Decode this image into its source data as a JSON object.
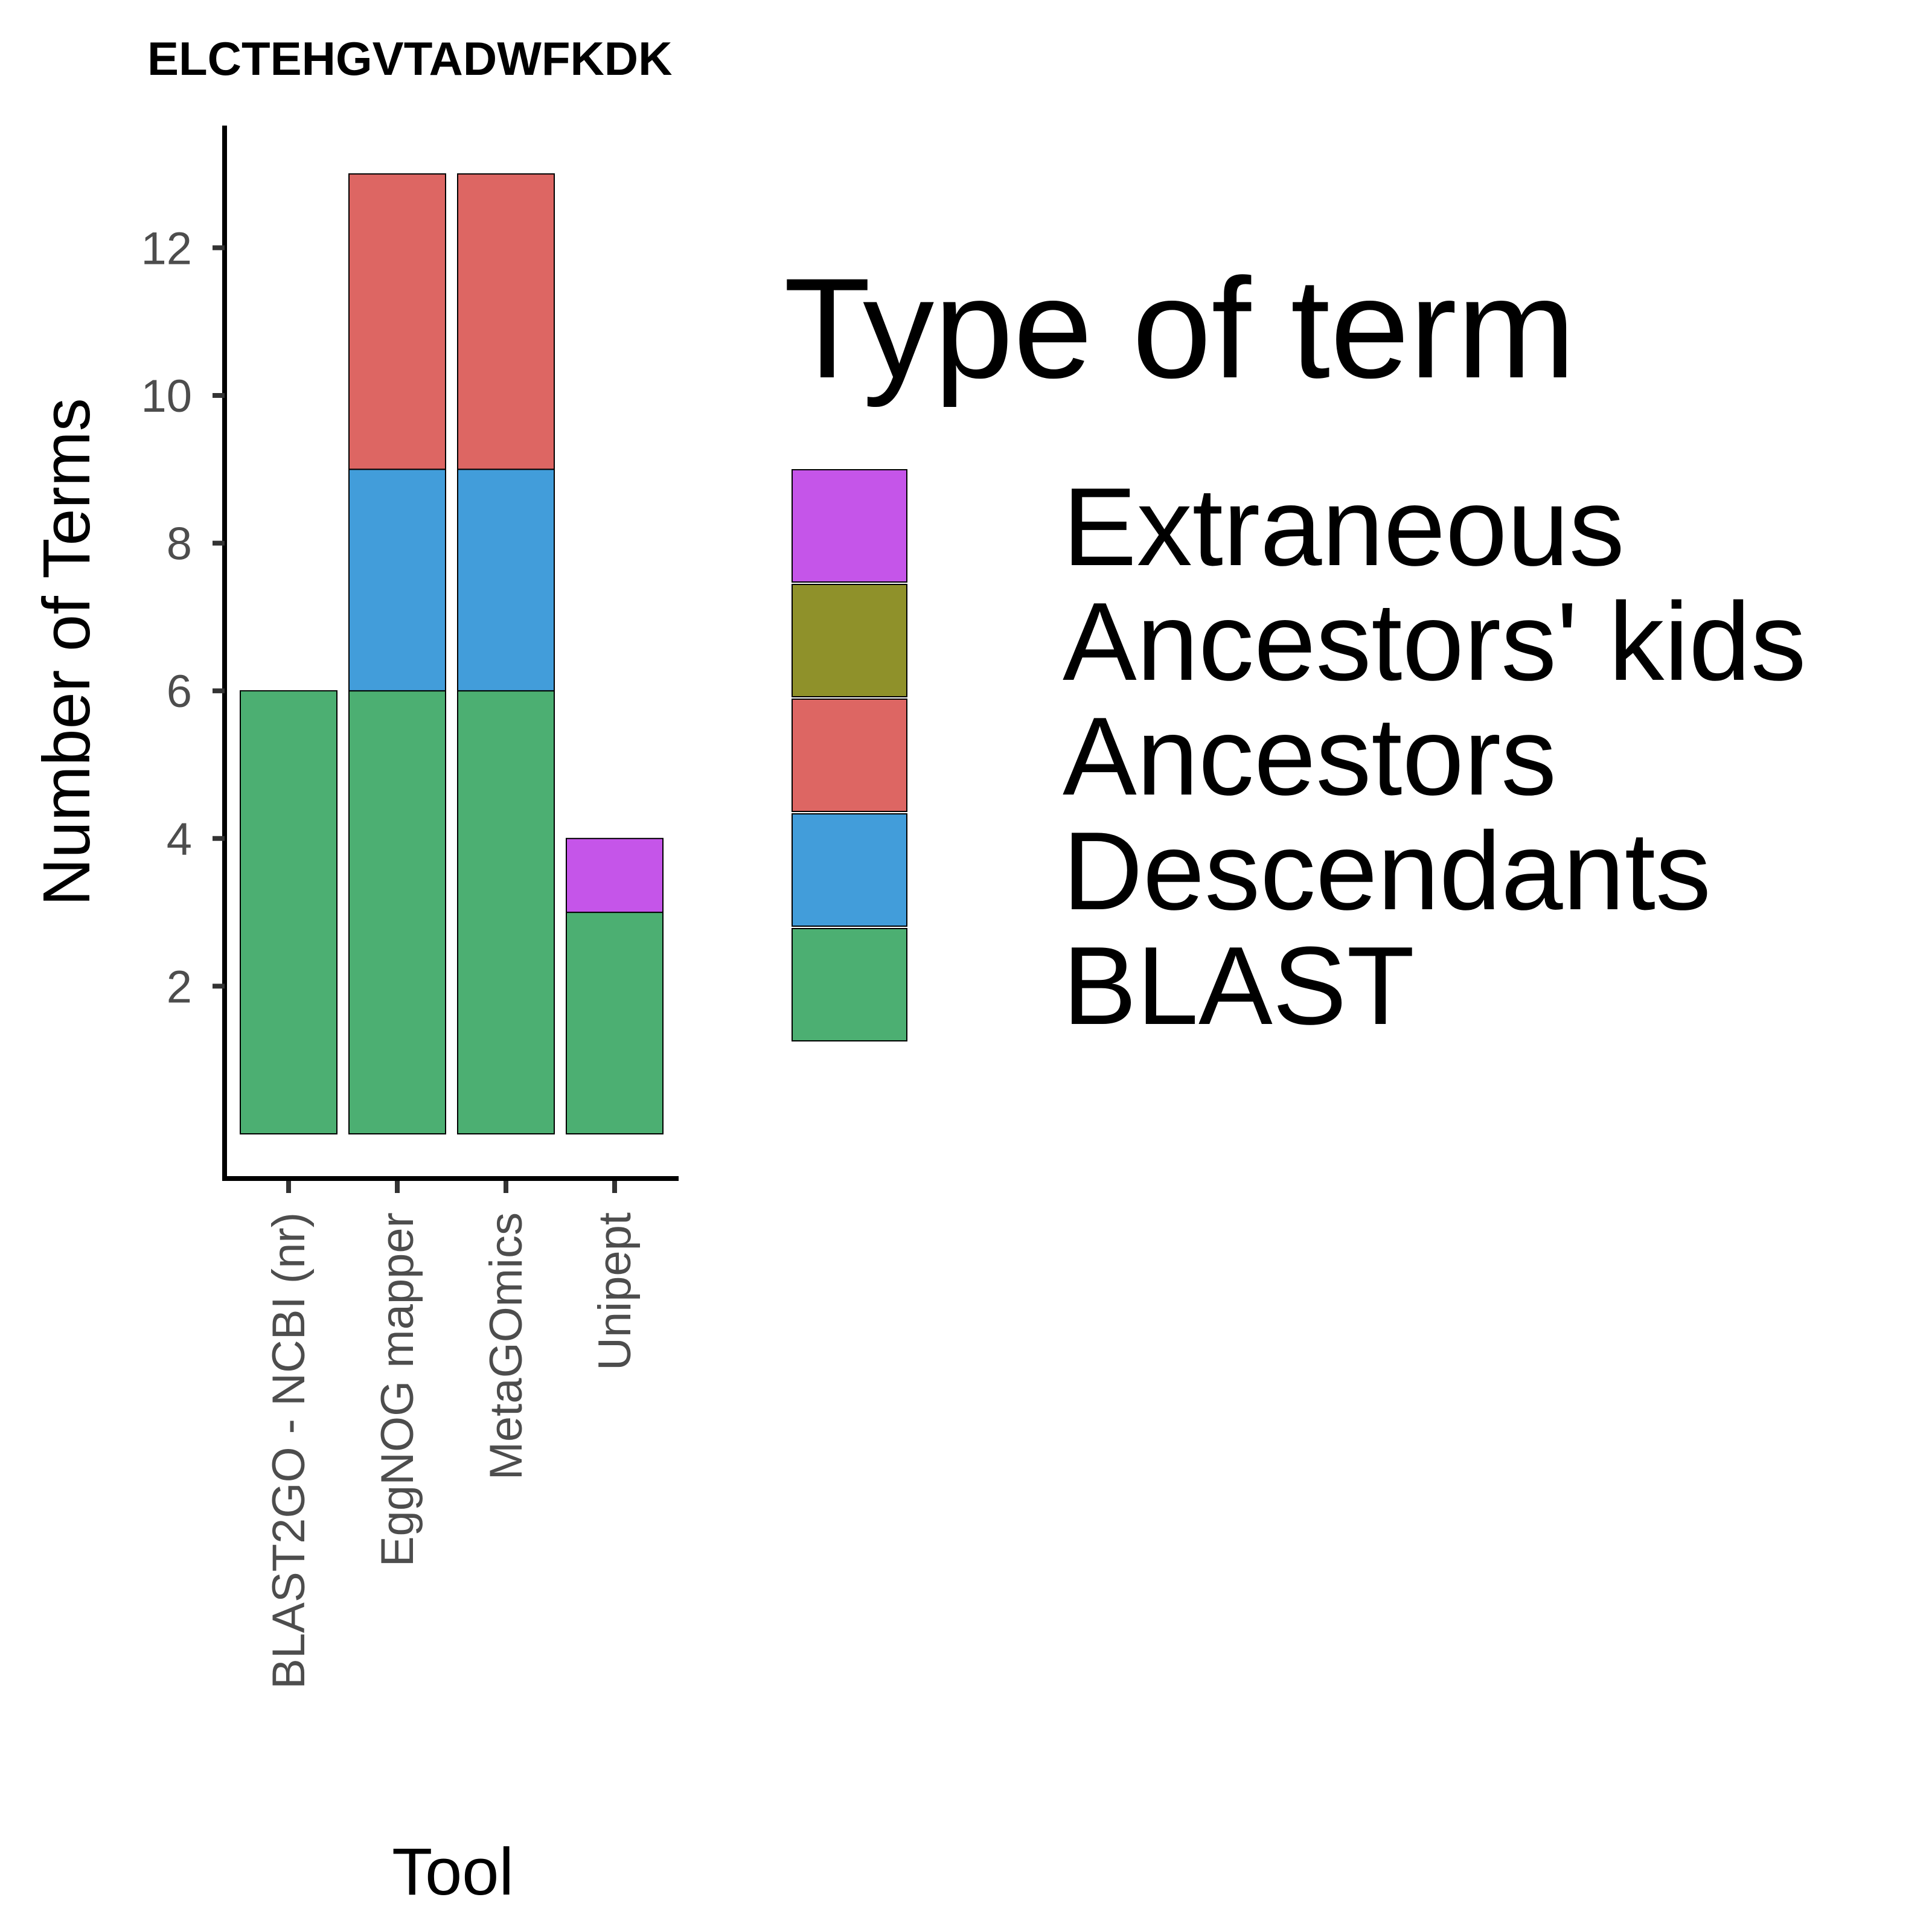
{
  "chart_data": {
    "type": "bar",
    "stacked": true,
    "title": "ELCTEHGVTADWFKDK",
    "xlabel": "Tool",
    "ylabel": "Number of Terms",
    "categories": [
      "BLAST2GO - NCBI (nr)",
      "EggNOG mapper",
      "MetaGOmics",
      "Unipept"
    ],
    "yticks": [
      2,
      4,
      6,
      8,
      10,
      12
    ],
    "ylim": [
      0,
      13.6
    ],
    "grid": false,
    "legend": {
      "title": "Type of term",
      "position": "right",
      "entries": [
        {
          "name": "Extraneous",
          "color": "#c555e9"
        },
        {
          "name": "Ancestors' kids",
          "color": "#8f912a"
        },
        {
          "name": "Ancestors",
          "color": "#dd6663"
        },
        {
          "name": "Descendants",
          "color": "#429dda"
        },
        {
          "name": "BLAST",
          "color": "#4caf72"
        }
      ]
    },
    "series": [
      {
        "name": "BLAST",
        "color": "#4caf72",
        "values": [
          6,
          6,
          6,
          3
        ]
      },
      {
        "name": "Descendants",
        "color": "#429dda",
        "values": [
          0,
          3,
          3,
          0
        ]
      },
      {
        "name": "Ancestors",
        "color": "#dd6663",
        "values": [
          0,
          4,
          4,
          0
        ]
      },
      {
        "name": "Ancestors' kids",
        "color": "#8f912a",
        "values": [
          0,
          0,
          0,
          0
        ]
      },
      {
        "name": "Extraneous",
        "color": "#c555e9",
        "values": [
          0,
          0,
          0,
          1
        ]
      }
    ]
  }
}
